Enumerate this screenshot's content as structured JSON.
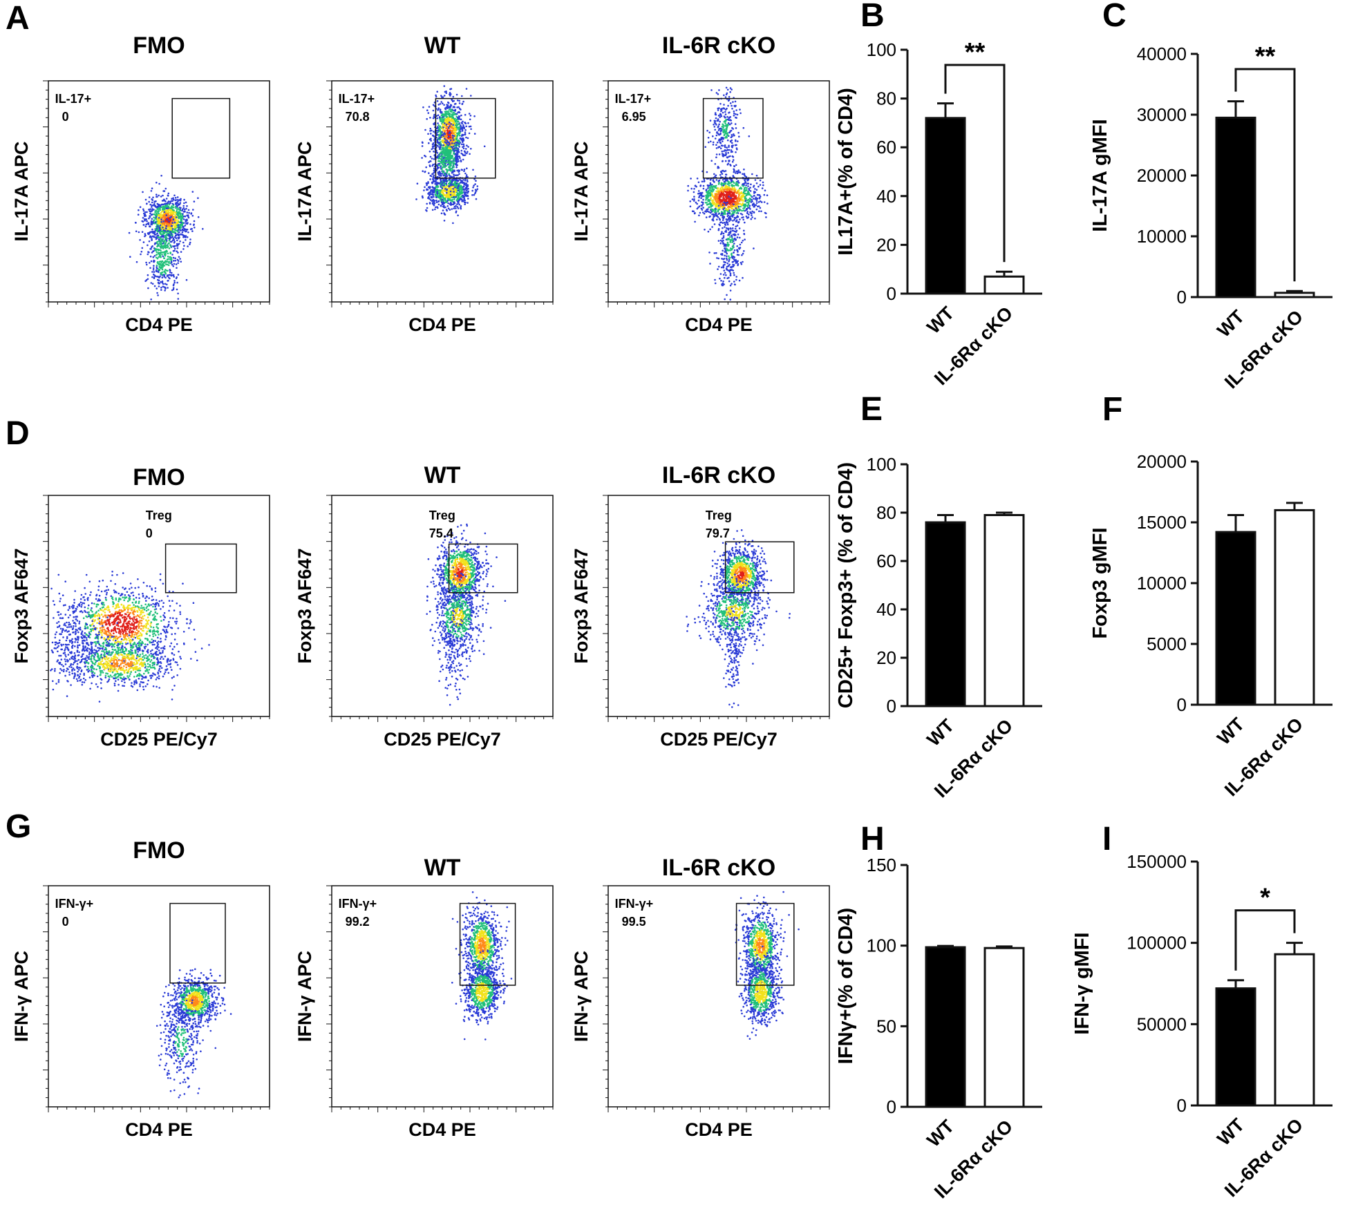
{
  "figure": {
    "panel_letters": [
      "A",
      "B",
      "C",
      "D",
      "E",
      "F",
      "G",
      "H",
      "I"
    ]
  },
  "colors": {
    "axis": "#111111",
    "wt_bar": "#000000",
    "ko_bar": "#ffffff",
    "density_low": "#2a3bd6",
    "density_mid": "#21c07a",
    "density_high_a": "#f2e21c",
    "density_high_b": "#ff8a1a",
    "density_peak": "#e0201a"
  },
  "flow_rows": [
    {
      "panel": "A",
      "y_label": "IL-17A APC",
      "x_label": "CD4 PE",
      "plots": [
        {
          "title": "FMO",
          "gate_label": "IL-17+",
          "gate_value": "0"
        },
        {
          "title": "WT",
          "gate_label": "IL-17+",
          "gate_value": "70.8"
        },
        {
          "title": "IL-6R cKO",
          "gate_label": "IL-17+",
          "gate_value": "6.95"
        }
      ]
    },
    {
      "panel": "D",
      "y_label": "Foxp3 AF647",
      "x_label": "CD25 PE/Cy7",
      "plots": [
        {
          "title": "FMO",
          "gate_label": "Treg",
          "gate_value": "0"
        },
        {
          "title": "WT",
          "gate_label": "Treg",
          "gate_value": "75.4"
        },
        {
          "title": "IL-6R cKO",
          "gate_label": "Treg",
          "gate_value": "79.7"
        }
      ]
    },
    {
      "panel": "G",
      "y_label": "IFN-γ APC",
      "x_label": "CD4 PE",
      "plots": [
        {
          "title": "FMO",
          "gate_label": "IFN-γ+",
          "gate_value": "0"
        },
        {
          "title": "WT",
          "gate_label": "IFN-γ+",
          "gate_value": "99.2"
        },
        {
          "title": "IL-6R cKO",
          "gate_label": "IFN-γ+",
          "gate_value": "99.5"
        }
      ]
    }
  ],
  "chart_data": [
    {
      "panel": "B",
      "type": "bar",
      "categories": [
        "WT",
        "IL-6Rα cKO"
      ],
      "values": [
        72,
        7
      ],
      "errors": [
        6,
        2
      ],
      "ylabel": "IL17A+(% of CD4)",
      "ylim": [
        0,
        100
      ],
      "yticks": [
        0,
        20,
        40,
        60,
        80,
        100
      ],
      "significance": "**"
    },
    {
      "panel": "C",
      "type": "bar",
      "categories": [
        "WT",
        "IL-6Rα cKO"
      ],
      "values": [
        29500,
        700
      ],
      "errors": [
        2700,
        300
      ],
      "ylabel": "IL-17A gMFI",
      "ylim": [
        0,
        40000
      ],
      "yticks": [
        0,
        10000,
        20000,
        30000,
        40000
      ],
      "significance": "**"
    },
    {
      "panel": "E",
      "type": "bar",
      "categories": [
        "WT",
        "IL-6Rα cKO"
      ],
      "values": [
        76,
        79
      ],
      "errors": [
        3,
        1
      ],
      "ylabel": "CD25+ Foxp3+ (% of CD4)",
      "ylim": [
        0,
        100
      ],
      "yticks": [
        0,
        20,
        40,
        60,
        80,
        100
      ],
      "significance": ""
    },
    {
      "panel": "F",
      "type": "bar",
      "categories": [
        "WT",
        "IL-6Rα cKO"
      ],
      "values": [
        14200,
        16000
      ],
      "errors": [
        1400,
        600
      ],
      "ylabel": "Foxp3 gMFI",
      "ylim": [
        0,
        20000
      ],
      "yticks": [
        0,
        5000,
        10000,
        15000,
        20000
      ],
      "significance": ""
    },
    {
      "panel": "H",
      "type": "bar",
      "categories": [
        "WT",
        "IL-6Rα cKO"
      ],
      "values": [
        99,
        98.5
      ],
      "errors": [
        0.8,
        1
      ],
      "ylabel": "IFNγ+(% of CD4)",
      "ylim": [
        0,
        150
      ],
      "yticks": [
        0,
        50,
        100,
        150
      ],
      "significance": ""
    },
    {
      "panel": "I",
      "type": "bar",
      "categories": [
        "WT",
        "IL-6Rα cKO"
      ],
      "values": [
        72000,
        93000
      ],
      "errors": [
        5000,
        7000
      ],
      "ylabel": "IFN-γ gMFI",
      "ylim": [
        0,
        150000
      ],
      "yticks": [
        0,
        50000,
        100000,
        150000
      ],
      "significance": "*"
    }
  ]
}
